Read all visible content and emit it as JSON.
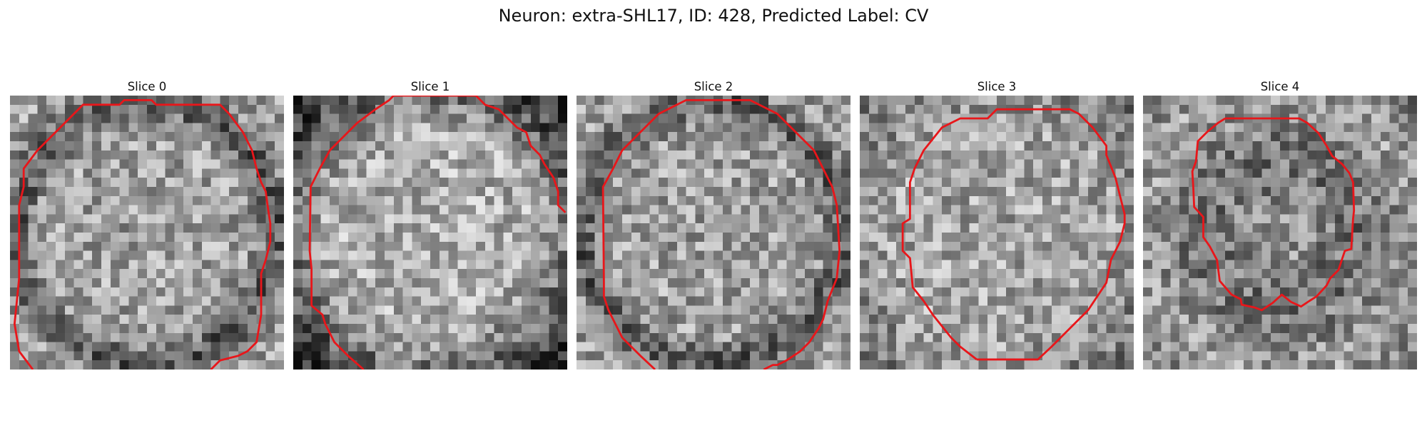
{
  "figure": {
    "suptitle": "Neuron: extra-SHL17, ID: 428, Predicted Label: CV",
    "contour_color": "#e8161a",
    "colormap": "gray",
    "grid_size": 30
  },
  "slices": [
    {
      "title": "Slice 0",
      "seed": 11,
      "profile": "ring",
      "contour": [
        [
          2.5,
          30
        ],
        [
          1,
          28
        ],
        [
          0.5,
          25
        ],
        [
          0.8,
          22
        ],
        [
          1,
          20
        ],
        [
          1,
          12
        ],
        [
          1.5,
          10
        ],
        [
          1.5,
          8
        ],
        [
          3,
          6
        ],
        [
          4,
          5
        ],
        [
          6,
          3
        ],
        [
          8,
          1
        ],
        [
          12,
          1
        ],
        [
          12.5,
          0.5
        ],
        [
          15.5,
          0.5
        ],
        [
          16,
          1
        ],
        [
          23,
          1
        ],
        [
          24,
          2
        ],
        [
          25.5,
          4
        ],
        [
          26.5,
          6
        ],
        [
          27,
          8
        ],
        [
          27.5,
          9.5
        ],
        [
          28,
          10.5
        ],
        [
          28.2,
          12
        ],
        [
          28.5,
          14
        ],
        [
          28.5,
          16
        ],
        [
          28,
          18
        ],
        [
          27.5,
          19.5
        ],
        [
          27.5,
          24
        ],
        [
          27,
          27
        ],
        [
          26,
          28
        ],
        [
          25,
          28.5
        ],
        [
          23,
          29
        ],
        [
          22,
          30
        ]
      ]
    },
    {
      "title": "Slice 1",
      "seed": 29,
      "profile": "bright",
      "contour": [
        [
          7.7,
          30
        ],
        [
          6,
          28.5
        ],
        [
          4.5,
          27
        ],
        [
          3.5,
          25
        ],
        [
          3.2,
          24
        ],
        [
          2,
          23
        ],
        [
          2,
          19
        ],
        [
          1.8,
          17
        ],
        [
          1.9,
          10
        ],
        [
          2.4,
          9
        ],
        [
          2.9,
          8
        ],
        [
          4,
          6
        ],
        [
          5,
          5
        ],
        [
          7,
          3
        ],
        [
          9,
          1.5
        ],
        [
          10.5,
          0.5
        ],
        [
          11,
          0
        ],
        [
          20,
          0
        ],
        [
          21,
          1
        ],
        [
          22.5,
          1.5
        ],
        [
          23.5,
          2.5
        ],
        [
          24.5,
          3.5
        ],
        [
          25.5,
          4
        ],
        [
          26,
          5.5
        ],
        [
          27,
          6.5
        ],
        [
          27.5,
          7.5
        ],
        [
          28.5,
          9
        ],
        [
          29,
          10.5
        ],
        [
          29,
          12
        ],
        [
          29.5,
          12.5
        ],
        [
          29.8,
          12.8
        ]
      ]
    },
    {
      "title": "Slice 2",
      "seed": 47,
      "profile": "ring",
      "contour": [
        [
          8.6,
          30
        ],
        [
          7,
          28.5
        ],
        [
          5,
          26.5
        ],
        [
          4.5,
          25.5
        ],
        [
          4,
          24.5
        ],
        [
          3.5,
          23.5
        ],
        [
          3,
          22
        ],
        [
          3,
          20.5
        ],
        [
          2.9,
          10
        ],
        [
          4,
          8
        ],
        [
          5,
          6
        ],
        [
          6,
          5
        ],
        [
          8,
          3
        ],
        [
          9,
          2
        ],
        [
          11,
          1
        ],
        [
          12,
          0.5
        ],
        [
          19,
          0.5
        ],
        [
          20,
          1
        ],
        [
          22,
          2
        ],
        [
          24,
          4
        ],
        [
          25,
          5
        ],
        [
          26,
          6
        ],
        [
          27,
          8
        ],
        [
          28,
          10
        ],
        [
          28.5,
          12
        ],
        [
          28.8,
          17
        ],
        [
          28.5,
          20
        ],
        [
          27.5,
          22.5
        ],
        [
          27,
          24.5
        ],
        [
          26.5,
          25.5
        ],
        [
          25.5,
          27
        ],
        [
          24.5,
          28
        ],
        [
          23,
          29
        ],
        [
          22,
          29.5
        ],
        [
          21.5,
          29.5
        ],
        [
          20.5,
          30
        ]
      ]
    },
    {
      "title": "Slice 3",
      "seed": 83,
      "profile": "soft",
      "contour": [
        [
          12.8,
          28.9
        ],
        [
          15,
          28.9
        ],
        [
          19.5,
          28.9
        ],
        [
          21,
          27.5
        ],
        [
          23,
          25.5
        ],
        [
          25,
          23.5
        ],
        [
          26,
          22
        ],
        [
          27,
          20.5
        ],
        [
          27.5,
          18
        ],
        [
          28.5,
          16
        ],
        [
          29,
          14
        ],
        [
          29,
          13
        ],
        [
          28.5,
          11
        ],
        [
          28,
          9
        ],
        [
          27,
          6.5
        ],
        [
          27,
          5.5
        ],
        [
          25.5,
          3.5
        ],
        [
          24,
          2
        ],
        [
          23,
          1.5
        ],
        [
          15,
          1.5
        ],
        [
          14,
          2.5
        ],
        [
          11,
          2.5
        ],
        [
          9,
          3.5
        ],
        [
          7,
          6
        ],
        [
          6.5,
          7
        ],
        [
          6,
          8
        ],
        [
          5.5,
          9.5
        ],
        [
          5.5,
          13.5
        ],
        [
          4.7,
          14
        ],
        [
          4.7,
          17
        ],
        [
          5.5,
          17.8
        ],
        [
          5.8,
          21
        ],
        [
          7,
          22.5
        ],
        [
          8,
          24
        ],
        [
          10,
          26.5
        ],
        [
          11,
          27.5
        ],
        [
          12.8,
          28.9
        ]
      ]
    },
    {
      "title": "Slice 4",
      "seed": 131,
      "profile": "dark",
      "contour": [
        [
          9,
          2.5
        ],
        [
          8.2,
          3
        ],
        [
          7,
          4
        ],
        [
          6,
          5
        ],
        [
          5.8,
          7.2
        ],
        [
          5.4,
          8.3
        ],
        [
          5.5,
          10
        ],
        [
          5.6,
          12.2
        ],
        [
          6.6,
          13.3
        ],
        [
          6.6,
          15.5
        ],
        [
          7.3,
          16.5
        ],
        [
          8.1,
          18
        ],
        [
          8.4,
          20.3
        ],
        [
          9.7,
          21.8
        ],
        [
          10.7,
          22.3
        ],
        [
          10.8,
          22.9
        ],
        [
          12.2,
          23.2
        ],
        [
          13,
          23.5
        ],
        [
          14.2,
          22.7
        ],
        [
          15.2,
          21.8
        ],
        [
          16.2,
          22.6
        ],
        [
          17.3,
          23.1
        ],
        [
          18.2,
          22.5
        ],
        [
          19,
          22
        ],
        [
          20.1,
          20.8
        ],
        [
          20.5,
          20
        ],
        [
          21.4,
          19.1
        ],
        [
          22.1,
          17
        ],
        [
          22.8,
          16.8
        ],
        [
          23,
          13.5
        ],
        [
          23.1,
          12.6
        ],
        [
          23,
          9.5
        ],
        [
          22.6,
          8.5
        ],
        [
          21.8,
          7.5
        ],
        [
          20.7,
          6.6
        ],
        [
          20.1,
          5.5
        ],
        [
          19.2,
          4.1
        ],
        [
          18,
          3
        ],
        [
          17.1,
          2.5
        ],
        [
          9,
          2.5
        ]
      ]
    }
  ]
}
